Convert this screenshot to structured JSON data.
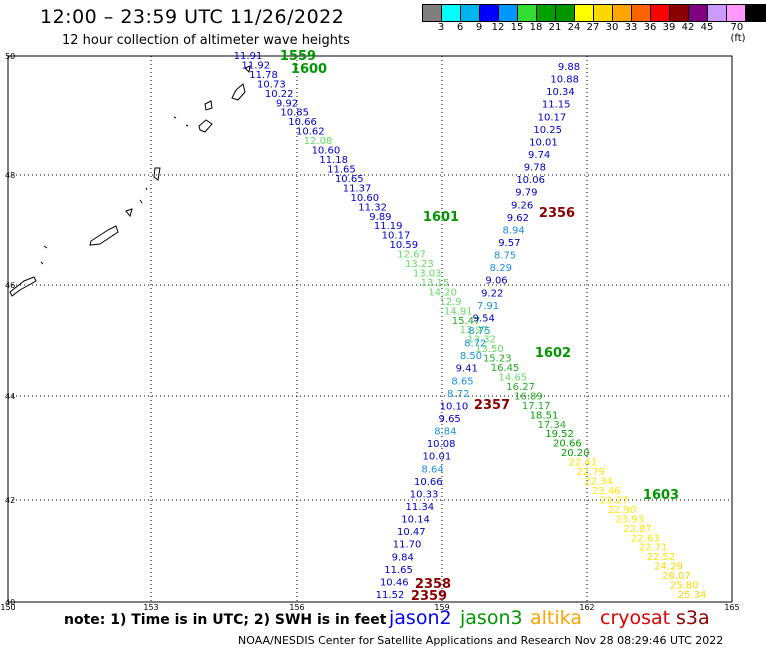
{
  "header": {
    "title": "12:00 – 23:59 UTC 11/26/2022",
    "subtitle": "12 hour collection of altimeter wave heights"
  },
  "legend": {
    "colors": [
      "#7f7f7f",
      "#00ffff",
      "#00b4f0",
      "#0000ff",
      "#0096ff",
      "#32dc32",
      "#00a000",
      "#009600",
      "#ffff00",
      "#ffd700",
      "#ffa500",
      "#ff6400",
      "#ff0000",
      "#8b0000",
      "#800080",
      "#cc99ff",
      "#ff99ff",
      "#000000"
    ],
    "labels": [
      "3",
      "6",
      "9",
      "12",
      "15",
      "18",
      "21",
      "24",
      "27",
      "30",
      "33",
      "36",
      "39",
      "42",
      "45",
      "70 (ft)"
    ]
  },
  "axes": {
    "x_ticks": [
      "150",
      "153",
      "156",
      "159",
      "162",
      "165"
    ],
    "y_ticks": [
      "50",
      "48",
      "46",
      "44",
      "42",
      "40"
    ]
  },
  "footer": {
    "note": "note:  1) Time is in UTC;  2) SWH is in feet",
    "credit": "NOAA/NESDIS Center for Satellite Applications and Research    Nov 28 08:29:46 UTC 2022"
  },
  "satellites": [
    {
      "name": "jason2",
      "color": "#0000ff"
    },
    {
      "name": "jason3",
      "color": "#009600"
    },
    {
      "name": "altika",
      "color": "#ffa500"
    },
    {
      "name": "cryosat",
      "color": "#dd0000"
    },
    {
      "name": "s3a",
      "color": "#8b0000"
    }
  ],
  "track_times": [
    {
      "text": "1559",
      "color": "#009600"
    },
    {
      "text": "1600",
      "color": "#009600"
    },
    {
      "text": "1601",
      "color": "#009600"
    },
    {
      "text": "1602",
      "color": "#009600"
    },
    {
      "text": "1603",
      "color": "#009600"
    },
    {
      "text": "2356",
      "color": "#8b0000"
    },
    {
      "text": "2357",
      "color": "#8b0000"
    },
    {
      "text": "2358",
      "color": "#8b0000"
    },
    {
      "text": "2359",
      "color": "#8b0000"
    }
  ],
  "tracks": {
    "track_a": [
      "11.91",
      "11.92",
      "11.78",
      "10.73",
      "10.22",
      "9.92",
      "10.85",
      "10.66",
      "10.62",
      "12.08",
      "10.60",
      "11.18",
      "11.65",
      "10.65",
      "11.37",
      "10.60",
      "11.32",
      "9.89",
      "11.19",
      "10.17",
      "10.59",
      "12.67",
      "13.23",
      "13.03",
      "13.15",
      "14.20",
      "12.9",
      "14.91",
      "15.47",
      "13.97",
      "13.32",
      "13.50",
      "15.23",
      "16.45",
      "14.65",
      "16.27",
      "16.89",
      "17.17",
      "18.51",
      "17.34",
      "19.52",
      "20.66",
      "20.20",
      "22.41",
      "22.79",
      "22.34",
      "23.46",
      "23.27",
      "22.90",
      "23.93",
      "22.87",
      "22.63",
      "22.71",
      "22.52",
      "24.29",
      "26.07",
      "25.80",
      "25.34"
    ],
    "track_b": [
      "9.88",
      "10.88",
      "10.34",
      "11.15",
      "10.17",
      "10.25",
      "10.01",
      "9.74",
      "9.78",
      "10.06",
      "9.79",
      "9.26",
      "9.62",
      "8.94",
      "9.57",
      "8.75",
      "8.29",
      "9.06",
      "9.22",
      "7.91",
      "9.54",
      "8.75",
      "8.72",
      "8.50",
      "9.41",
      "8.65",
      "8.72",
      "10.10",
      "9.65",
      "8.84",
      "10.08",
      "10.01",
      "8.64",
      "10.66",
      "10.33",
      "11.34",
      "10.14",
      "10.47",
      "11.70",
      "9.84",
      "11.65",
      "10.46",
      "11.52"
    ]
  }
}
